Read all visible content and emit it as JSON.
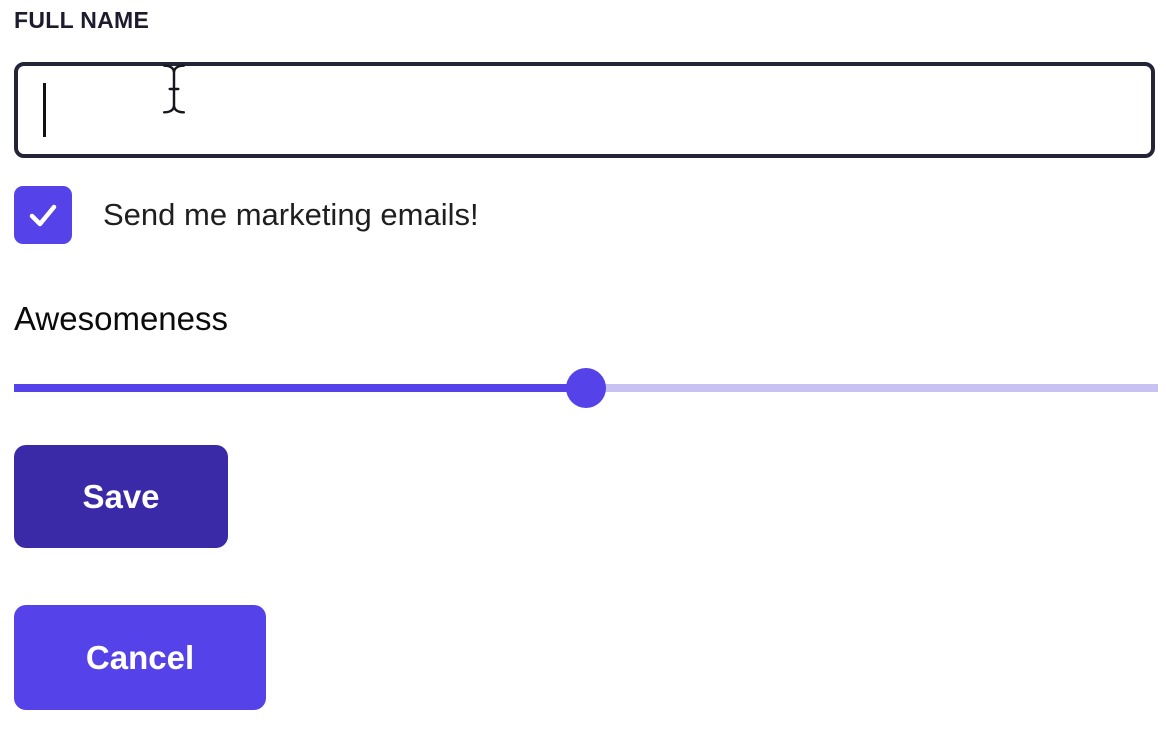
{
  "form": {
    "full_name": {
      "label": "FULL NAME",
      "value": "",
      "placeholder": ""
    },
    "marketing_checkbox": {
      "label": "Send me marketing emails!",
      "checked": true
    },
    "awesomeness_slider": {
      "label": "Awesomeness",
      "value_percent": 50
    },
    "save_button_label": "Save",
    "cancel_button_label": "Cancel"
  },
  "cursor": {
    "icon": "i-beam-cursor"
  },
  "icons": {
    "checkbox": "check-icon"
  },
  "colors": {
    "primary": "#5542e8",
    "primary_dark": "#3a2aa8",
    "track_unfilled": "#c7c2f1",
    "input_border": "#242438",
    "label_dark": "#1c1c2e",
    "text": "#1f1f1f"
  }
}
